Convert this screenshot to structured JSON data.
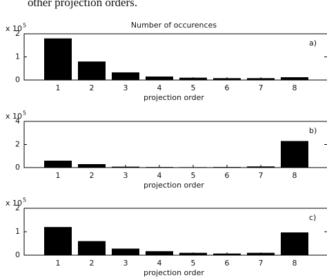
{
  "caption": "other projection orders.",
  "chart_data": [
    {
      "type": "bar",
      "title": "Number of occurences",
      "panel_label": "a)",
      "x_label": "projection order",
      "multiplier": {
        "base": "x 10",
        "exponent": "5"
      },
      "categories": [
        "1",
        "2",
        "3",
        "4",
        "5",
        "6",
        "7",
        "8"
      ],
      "values": [
        1.8,
        0.8,
        0.33,
        0.15,
        0.1,
        0.08,
        0.08,
        0.12
      ],
      "color": "#000000",
      "ylim": [
        0,
        2
      ],
      "yticks": [
        0,
        1,
        2
      ]
    },
    {
      "type": "bar",
      "panel_label": "b)",
      "x_label": "projection order",
      "multiplier": {
        "base": "x 10",
        "exponent": "5"
      },
      "categories": [
        "1",
        "2",
        "3",
        "4",
        "5",
        "6",
        "7",
        "8"
      ],
      "values": [
        0.6,
        0.3,
        0.08,
        0.05,
        0.04,
        0.05,
        0.1,
        2.3
      ],
      "color": "#000000",
      "ylim": [
        0,
        4
      ],
      "yticks": [
        0,
        2,
        4
      ]
    },
    {
      "type": "bar",
      "panel_label": "c)",
      "x_label": "projection order",
      "multiplier": {
        "base": "x 10",
        "exponent": "5"
      },
      "categories": [
        "1",
        "2",
        "3",
        "4",
        "5",
        "6",
        "7",
        "8"
      ],
      "values": [
        1.2,
        0.6,
        0.28,
        0.17,
        0.1,
        0.07,
        0.1,
        0.97
      ],
      "color": "#000000",
      "ylim": [
        0,
        2
      ],
      "yticks": [
        0,
        1,
        2
      ]
    }
  ]
}
